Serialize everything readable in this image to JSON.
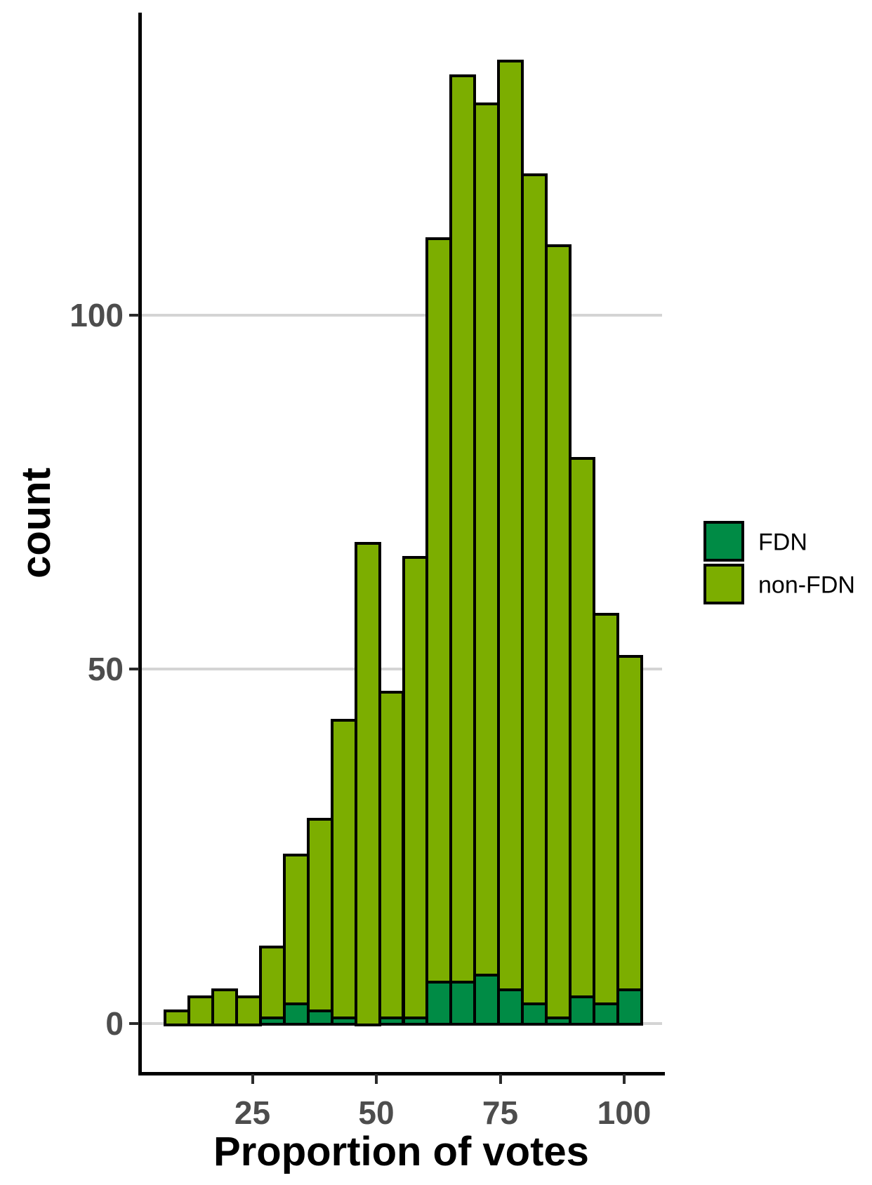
{
  "chart_data": {
    "type": "bar",
    "subtype": "stacked-histogram",
    "title": "",
    "xlabel": "Proportion of votes",
    "ylabel": "count",
    "x_ticks": [
      25,
      50,
      75,
      100
    ],
    "y_ticks": [
      0,
      50,
      100
    ],
    "xlim": [
      2.4,
      107.6
    ],
    "ylim": [
      0,
      143
    ],
    "grid": "horizontal-major-only",
    "legend_position": "right",
    "bin_width": 4.81,
    "bin_centers": [
      9.5,
      14.3,
      19.1,
      23.9,
      28.8,
      33.6,
      38.4,
      43.2,
      48.0,
      52.8,
      57.6,
      62.4,
      67.2,
      72.1,
      76.9,
      81.7,
      86.5,
      91.3,
      96.1,
      101.0
    ],
    "series": [
      {
        "name": "FDN",
        "color": "#008B45",
        "values": [
          0,
          0,
          0,
          0,
          1,
          3,
          2,
          1,
          0,
          1,
          1,
          6,
          6,
          7,
          5,
          3,
          1,
          4,
          3,
          5
        ]
      },
      {
        "name": "non-FDN",
        "color": "#7CAE00",
        "values": [
          2,
          4,
          5,
          4,
          10,
          21,
          27,
          42,
          68,
          46,
          65,
          105,
          128,
          123,
          131,
          117,
          109,
          76,
          55,
          47
        ]
      }
    ],
    "totals": [
      2,
      4,
      5,
      4,
      11,
      24,
      29,
      43,
      68,
      47,
      66,
      111,
      134,
      130,
      136,
      120,
      110,
      80,
      58,
      52
    ]
  },
  "axes": {
    "x_title": "Proportion of votes",
    "y_title": "count",
    "x_tick_labels": [
      "25",
      "50",
      "75",
      "100"
    ],
    "y_tick_labels": [
      "0",
      "50",
      "100"
    ]
  },
  "legend": {
    "items": [
      {
        "label": "FDN",
        "color": "#008B45"
      },
      {
        "label": "non-FDN",
        "color": "#7CAE00"
      }
    ]
  },
  "colors": {
    "fdn": "#008B45",
    "non_fdn": "#7CAE00",
    "outline": "#000000",
    "gridline": "#D4D4D4",
    "tick_label": "#4D4D4D",
    "axis_line": "#000000",
    "background": "#FFFFFF"
  }
}
